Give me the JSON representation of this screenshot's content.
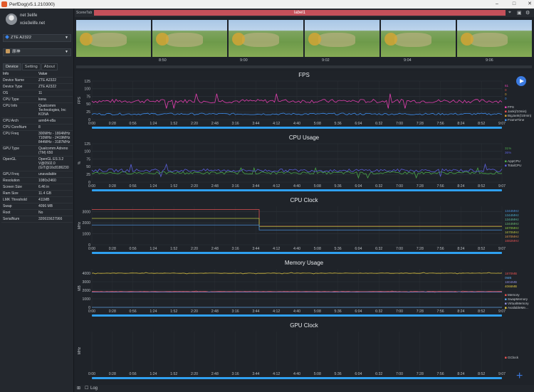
{
  "window": {
    "title": "PerfDog(v5.1.210300)"
  },
  "user": {
    "name": "net 3elife",
    "email": "xcie3elife.net"
  },
  "device_select": {
    "value": "ZTE A2322"
  },
  "app_select": {
    "value": "原神"
  },
  "side_tabs": [
    "Device",
    "Setting",
    "About"
  ],
  "info_header": {
    "key": "Info",
    "value": "Value"
  },
  "info_rows": [
    {
      "k": "Device Name",
      "v": "ZTE A2322"
    },
    {
      "k": "Device Type",
      "v": "ZTE A2322"
    },
    {
      "k": "OS",
      "v": "11"
    },
    {
      "k": "CPU Type",
      "v": "kona"
    },
    {
      "k": "CPU Info",
      "v": "Qualcomm Technologies, Inc KONA"
    },
    {
      "k": "CPU Arch",
      "v": "arm64-v8a"
    },
    {
      "k": "CPU CoreNum",
      "v": "8"
    },
    {
      "k": "CPU Freq",
      "v": "300MHz - 1804MHz 710MHz - 2419MHz 844MHz - 3187MHz"
    },
    {
      "k": "GPU Type",
      "v": "Qualcomm Adreno (TM) 650"
    },
    {
      "k": "OpenGL",
      "v": "OpenGL ES 3.2 V@0502.0 (GIT@16c8186230"
    },
    {
      "k": "GPU Freq",
      "v": "unavailable"
    },
    {
      "k": "Resolution",
      "v": "1080x2460"
    },
    {
      "k": "Screen Size",
      "v": "6.46 in"
    },
    {
      "k": "Ram Size",
      "v": "11.4 GB"
    },
    {
      "k": "LMK Threshold",
      "v": "411MB"
    },
    {
      "k": "Swap",
      "v": "4096 MB"
    },
    {
      "k": "Root",
      "v": "No"
    },
    {
      "k": "SerialNum",
      "v": "320615627966"
    }
  ],
  "scene": {
    "tag": "SceneTab",
    "label": "label1"
  },
  "thumb_times": [
    "8:50",
    "9:00",
    "9:02",
    "9:04",
    "9:06"
  ],
  "bottom": {
    "log_label": "Log"
  },
  "colors": {
    "fps": "#e33fb0",
    "jank": "#e05050",
    "bigjank": "#d0a030",
    "time": "#3f8ff0",
    "app_cpu": "#4aa84a",
    "total_cpu": "#5a5fd8",
    "mem": "#e05050",
    "swap": "#5aa0e0",
    "virtual": "#8a8ad8",
    "avail": "#d8c040",
    "gclock": "#e05050"
  },
  "time_axis": [
    "0:00",
    "0:28",
    "0:56",
    "1:24",
    "1:52",
    "2:20",
    "2:48",
    "3:16",
    "3:44",
    "4:12",
    "4:40",
    "5:08",
    "5:36",
    "6:04",
    "6:32",
    "7:00",
    "7:28",
    "7:56",
    "8:24",
    "8:52",
    "9:07"
  ],
  "chart_data": [
    {
      "type": "line",
      "title": "FPS",
      "ylabel": "FPS",
      "y_ticks": [
        0,
        25,
        50,
        75,
        100,
        125
      ],
      "ylim": [
        0,
        125
      ],
      "readouts": [
        {
          "text": "61",
          "color": "#e33fb0"
        },
        {
          "text": "0",
          "color": "#e05050"
        },
        {
          "text": "0",
          "color": "#d0a030"
        },
        {
          "text": "0",
          "color": "#3f8ff0"
        }
      ],
      "legend": [
        {
          "text": "FPS",
          "color": "#e33fb0"
        },
        {
          "text": "Jank(/10min)",
          "color": "#e05050"
        },
        {
          "text": "BigJank(/10min)",
          "color": "#d0a030"
        },
        {
          "text": "FrameTime",
          "color": "#3f8ff0"
        }
      ],
      "series": [
        {
          "name": "FPS",
          "mean": 60,
          "noise": 6,
          "color": "#e33fb0"
        },
        {
          "name": "FrameTime",
          "mean": 18,
          "noise": 3,
          "color": "#3f8ff0"
        }
      ]
    },
    {
      "type": "line",
      "title": "CPU Usage",
      "ylabel": "%",
      "y_ticks": [
        0,
        25,
        50,
        75,
        100,
        125
      ],
      "ylim": [
        0,
        125
      ],
      "readouts": [
        {
          "text": "31%",
          "color": "#4aa84a"
        },
        {
          "text": "36%",
          "color": "#5a5fd8"
        }
      ],
      "legend": [
        {
          "text": "AppCPU",
          "color": "#4aa84a"
        },
        {
          "text": "TotalCPU",
          "color": "#5a5fd8"
        }
      ],
      "series": [
        {
          "name": "AppCPU",
          "mean": 30,
          "noise": 4,
          "color": "#4aa84a"
        },
        {
          "name": "TotalCPU",
          "mean": 38,
          "noise": 5,
          "color": "#5a5fd8"
        }
      ]
    },
    {
      "type": "line",
      "title": "CPU Clock",
      "ylabel": "MHz",
      "y_ticks": [
        0,
        1000,
        2000,
        3000
      ],
      "ylim": [
        0,
        3500
      ],
      "readouts": [
        {
          "text": "1344MHz",
          "color": "#4a8fd8"
        },
        {
          "text": "1344MHz",
          "color": "#4aa8c8"
        },
        {
          "text": "1344MHz",
          "color": "#5ab8a0"
        },
        {
          "text": "1344MHz",
          "color": "#6ab870"
        },
        {
          "text": "1670MHz",
          "color": "#8ac840"
        },
        {
          "text": "1670MHz",
          "color": "#b8c040"
        },
        {
          "text": "1670MHz",
          "color": "#d89048"
        },
        {
          "text": "1682MHz",
          "color": "#e05050"
        }
      ],
      "series": [
        {
          "name": "cpu7",
          "steps": [
            [
              0,
              3200
            ],
            [
              3.72,
              1680
            ]
          ],
          "color": "#e05050"
        },
        {
          "name": "cpu4",
          "steps": [
            [
              0,
              2400
            ],
            [
              3.72,
              1670
            ]
          ],
          "color": "#b8c040"
        },
        {
          "name": "cpu0",
          "steps": [
            [
              0,
              1800
            ],
            [
              3.72,
              1344
            ]
          ],
          "color": "#4a8fd8"
        }
      ]
    },
    {
      "type": "line",
      "title": "Memory Usage",
      "ylabel": "MB",
      "y_ticks": [
        0,
        1000,
        2000,
        3000,
        4000
      ],
      "ylim": [
        0,
        4500
      ],
      "readouts": [
        {
          "text": "1870MB",
          "color": "#e05050"
        },
        {
          "text": "0MB",
          "color": "#5aa0e0"
        },
        {
          "text": "1804MB",
          "color": "#8a8ad8"
        },
        {
          "text": "4066MB",
          "color": "#d8c040"
        }
      ],
      "legend": [
        {
          "text": "Memory",
          "color": "#e05050"
        },
        {
          "text": "SwapMemory",
          "color": "#5aa0e0"
        },
        {
          "text": "VirtualMemory",
          "color": "#8a8ad8"
        },
        {
          "text": "AvailableMe...",
          "color": "#d8c040"
        }
      ],
      "series": [
        {
          "name": "AvailableMemory",
          "mean": 4000,
          "noise": 20,
          "color": "#d8c040"
        },
        {
          "name": "Memory",
          "mean": 1850,
          "noise": 15,
          "color": "#e05050"
        },
        {
          "name": "VirtualMemory",
          "mean": 1800,
          "noise": 10,
          "color": "#8a8ad8"
        },
        {
          "name": "SwapMemory",
          "mean": 0,
          "noise": 0,
          "color": "#5aa0e0"
        }
      ]
    },
    {
      "type": "line",
      "title": "GPU Clock",
      "ylabel": "MHz",
      "y_ticks": [],
      "ylim": [
        0,
        1
      ],
      "legend": [
        {
          "text": "GClock",
          "color": "#e05050"
        }
      ],
      "series": []
    }
  ]
}
